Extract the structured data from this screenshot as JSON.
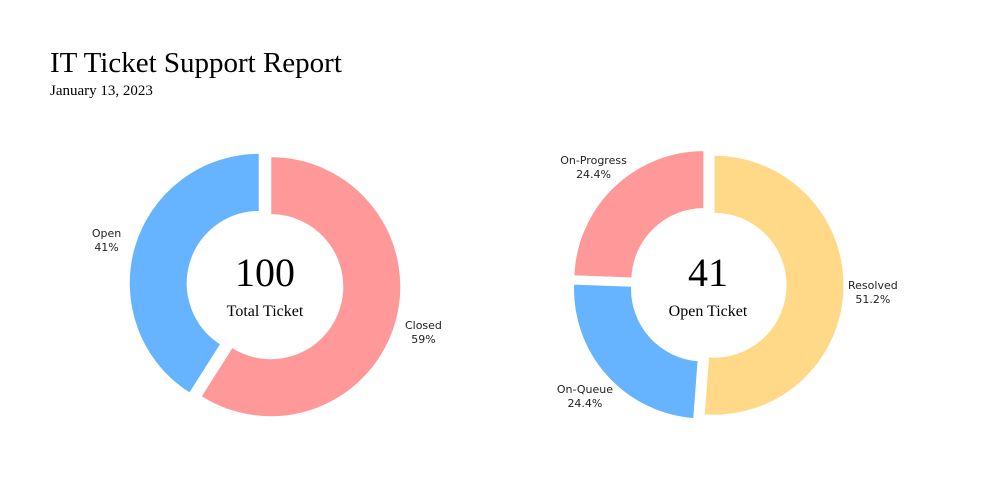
{
  "header": {
    "title": "IT Ticket Support Report",
    "date": "January 13, 2023"
  },
  "chart_data": [
    {
      "type": "pie",
      "variant": "donut",
      "center_value": "100",
      "center_label": "Total Ticket",
      "slices": [
        {
          "label": "Closed",
          "value": 59,
          "display": "59%",
          "color": "#ff9999"
        },
        {
          "label": "Open",
          "value": 41,
          "display": "41%",
          "color": "#66b3ff"
        }
      ]
    },
    {
      "type": "pie",
      "variant": "donut",
      "center_value": "41",
      "center_label": "Open Ticket",
      "slices": [
        {
          "label": "Resolved",
          "value": 51.2,
          "display": "51.2%",
          "color": "#ffd988"
        },
        {
          "label": "On-Queue",
          "value": 24.4,
          "display": "24.4%",
          "color": "#66b3ff"
        },
        {
          "label": "On-Progress",
          "value": 24.4,
          "display": "24.4%",
          "color": "#ff9999"
        }
      ]
    }
  ]
}
